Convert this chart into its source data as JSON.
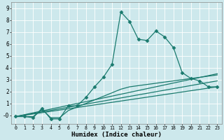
{
  "xlabel": "Humidex (Indice chaleur)",
  "xlim": [
    -0.5,
    23.5
  ],
  "ylim": [
    -0.7,
    9.5
  ],
  "xticks": [
    0,
    1,
    2,
    3,
    4,
    5,
    6,
    7,
    8,
    9,
    10,
    11,
    12,
    13,
    14,
    15,
    16,
    17,
    18,
    19,
    20,
    21,
    22,
    23
  ],
  "yticks": [
    0,
    1,
    2,
    3,
    4,
    5,
    6,
    7,
    8,
    9
  ],
  "ytick_labels": [
    "-0",
    "1",
    "2",
    "3",
    "4",
    "5",
    "6",
    "7",
    "8",
    "9"
  ],
  "bg_color": "#cde8ec",
  "line_color": "#1a7a6e",
  "grid_color": "#ffffff",
  "lines": [
    {
      "x": [
        0,
        1,
        2,
        3,
        4,
        5,
        6,
        7,
        8,
        9,
        10,
        11,
        12,
        13,
        14,
        15,
        16,
        17,
        18,
        19,
        20,
        21,
        22,
        23
      ],
      "y": [
        -0.1,
        -0.1,
        -0.2,
        0.6,
        -0.3,
        -0.3,
        0.8,
        0.8,
        1.5,
        2.4,
        3.2,
        4.3,
        8.7,
        7.9,
        6.4,
        6.3,
        7.1,
        6.6,
        5.7,
        3.6,
        3.1,
        2.9,
        2.4,
        2.4
      ],
      "marker": "D",
      "markersize": 2.5,
      "linewidth": 0.9
    },
    {
      "x": [
        0,
        23
      ],
      "y": [
        -0.1,
        3.5
      ],
      "marker": null,
      "markersize": 0,
      "linewidth": 0.9
    },
    {
      "x": [
        0,
        23
      ],
      "y": [
        -0.1,
        2.9
      ],
      "marker": null,
      "markersize": 0,
      "linewidth": 0.9
    },
    {
      "x": [
        0,
        23
      ],
      "y": [
        -0.1,
        2.4
      ],
      "marker": null,
      "markersize": 0,
      "linewidth": 0.9
    },
    {
      "x": [
        0,
        1,
        2,
        3,
        4,
        5,
        6,
        7,
        8,
        9,
        10,
        11,
        12,
        13,
        14,
        15,
        16,
        17,
        18,
        19,
        20,
        21,
        22,
        23
      ],
      "y": [
        -0.1,
        -0.1,
        -0.1,
        0.5,
        -0.2,
        -0.2,
        0.4,
        0.7,
        1.0,
        1.3,
        1.6,
        1.9,
        2.2,
        2.4,
        2.5,
        2.6,
        2.7,
        2.8,
        2.9,
        3.0,
        3.1,
        3.2,
        3.3,
        3.4
      ],
      "marker": null,
      "markersize": 0,
      "linewidth": 0.9
    }
  ]
}
